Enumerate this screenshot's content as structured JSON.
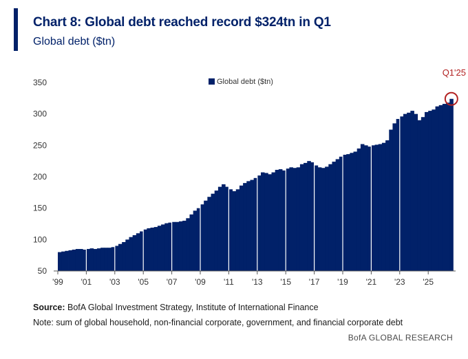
{
  "header": {
    "title": "Chart 8: Global debt reached record $324tn in Q1",
    "subtitle": "Global debt ($tn)"
  },
  "footer": {
    "source_label": "Source:",
    "source_text": " BofA Global Investment Strategy, Institute of International Finance",
    "note": "Note: sum of global household, non-financial corporate, government, and financial corporate debt",
    "brand": "BofA GLOBAL RESEARCH"
  },
  "colors": {
    "bar": "#012169",
    "highlight": "#b22222",
    "axis": "#555555"
  },
  "chart_data": {
    "type": "bar",
    "title": "Chart 8: Global debt reached record $324tn in Q1",
    "subtitle": "Global debt ($tn)",
    "xlabel": "",
    "ylabel": "",
    "ylim": [
      50,
      350
    ],
    "yticks": [
      50,
      100,
      150,
      200,
      250,
      300,
      350
    ],
    "xticks": [
      "'99",
      "'01",
      "'03",
      "'05",
      "'07",
      "'09",
      "'11",
      "'13",
      "'15",
      "'17",
      "'19",
      "'21",
      "'23",
      "'25"
    ],
    "legend": {
      "label": "Global debt ($tn)",
      "position": "top-center"
    },
    "annotation": {
      "label": "Q1'25",
      "value": 324
    },
    "series": [
      {
        "name": "Global debt ($tn)",
        "x_start": "1999 Q1",
        "frequency": "quarterly",
        "values": [
          80,
          81,
          82,
          83,
          84,
          85,
          85,
          84,
          85,
          86,
          85,
          86,
          87,
          87,
          87,
          88,
          90,
          93,
          96,
          100,
          104,
          107,
          110,
          113,
          116,
          118,
          119,
          120,
          122,
          124,
          126,
          127,
          128,
          128,
          129,
          130,
          134,
          140,
          146,
          150,
          156,
          162,
          168,
          173,
          178,
          184,
          188,
          184,
          180,
          177,
          180,
          186,
          190,
          193,
          195,
          198,
          202,
          207,
          206,
          204,
          207,
          211,
          212,
          210,
          213,
          215,
          214,
          215,
          220,
          222,
          225,
          223,
          218,
          215,
          214,
          216,
          220,
          224,
          228,
          232,
          235,
          236,
          238,
          240,
          245,
          252,
          250,
          248,
          250,
          251,
          252,
          254,
          258,
          275,
          285,
          292,
          296,
          300,
          302,
          305,
          300,
          290,
          295,
          303,
          305,
          307,
          312,
          314,
          316,
          318,
          324
        ]
      }
    ]
  }
}
